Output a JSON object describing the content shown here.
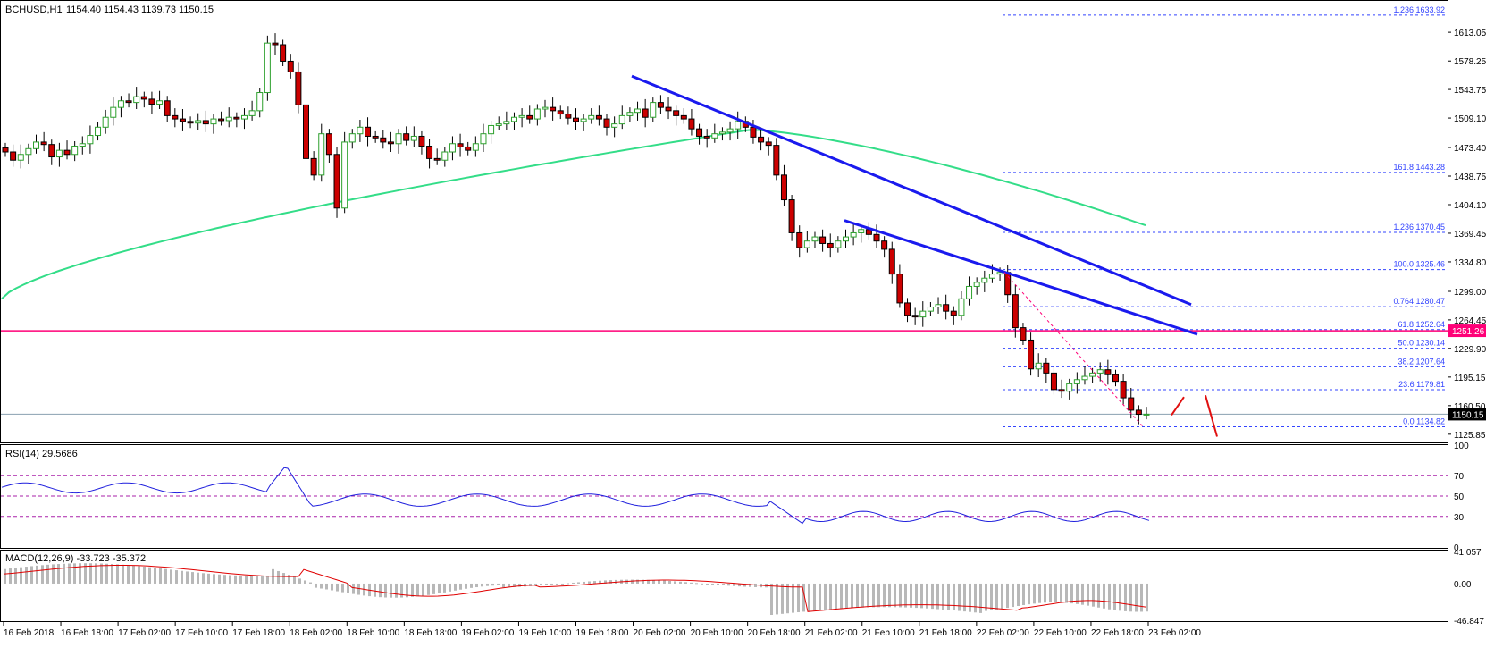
{
  "main": {
    "symbol_label": "BCHUSD,H1",
    "ohlc": "1154.40 1154.43 1139.73 1150.15",
    "current_price_label": "1150.15",
    "horizontal_level_label": "1251.26",
    "price_ticks": [
      "1613.05",
      "1578.25",
      "1543.75",
      "1509.10",
      "1473.40",
      "1438.75",
      "1404.10",
      "1369.45",
      "1334.80",
      "1299.00",
      "1264.45",
      "1229.90",
      "1195.15",
      "1160.50",
      "1125.85"
    ],
    "fib_levels": [
      {
        "label": "1.236  1633.92",
        "price": 1633.92
      },
      {
        "label": "161.8  1443.28",
        "price": 1443.28
      },
      {
        "label": "1.236  1370.45",
        "price": 1370.45
      },
      {
        "label": "100.0  1325.46",
        "price": 1325.46
      },
      {
        "label": "0.764  1280.47",
        "price": 1280.47
      },
      {
        "label": "61.8  1252.64",
        "price": 1252.64
      },
      {
        "label": "50.0  1230.14",
        "price": 1230.14
      },
      {
        "label": "38.2  1207.64",
        "price": 1207.64
      },
      {
        "label": "23.6  1179.81",
        "price": 1179.81
      },
      {
        "label": "0.0  1134.82",
        "price": 1134.82
      }
    ]
  },
  "rsi": {
    "label": "RSI(14) 29.5686",
    "ticks": [
      "100",
      "70",
      "50",
      "30",
      "0"
    ]
  },
  "macd": {
    "label": "MACD(12,26,9) -33.723 -35.372",
    "ticks": [
      "41.057",
      "0.00",
      "-46.847"
    ]
  },
  "time_axis": [
    "16 Feb 2018",
    "16 Feb 18:00",
    "17 Feb 02:00",
    "17 Feb 10:00",
    "17 Feb 18:00",
    "18 Feb 02:00",
    "18 Feb 10:00",
    "18 Feb 18:00",
    "19 Feb 02:00",
    "19 Feb 10:00",
    "19 Feb 18:00",
    "20 Feb 02:00",
    "20 Feb 10:00",
    "20 Feb 18:00",
    "21 Feb 02:00",
    "21 Feb 10:00",
    "21 Feb 18:00",
    "22 Feb 02:00",
    "22 Feb 10:00",
    "22 Feb 18:00",
    "23 Feb 02:00"
  ],
  "colors": {
    "bull_candle": "#2ca02c",
    "bear_candle": "#cc0000",
    "moving_average": "#33dd88",
    "trend_line": "#1a1aee",
    "support_line": "#ff0077",
    "fib_line": "#3344ff",
    "rsi_line": "#1f1fdd",
    "macd_signal": "#e00000",
    "macd_histogram": "#b8b8b8",
    "level_line": "#aa22aa"
  },
  "chart_data": [
    {
      "type": "candlestick",
      "title": "BCHUSD,H1",
      "ylim": [
        1117,
        1650
      ],
      "close_series": [
        1468,
        1458,
        1465,
        1472,
        1480,
        1477,
        1462,
        1470,
        1465,
        1475,
        1478,
        1488,
        1498,
        1510,
        1522,
        1530,
        1528,
        1535,
        1532,
        1526,
        1530,
        1512,
        1508,
        1505,
        1503,
        1506,
        1502,
        1508,
        1506,
        1510,
        1508,
        1512,
        1518,
        1540,
        1600,
        1598,
        1578,
        1565,
        1525,
        1460,
        1440,
        1490,
        1465,
        1400,
        1480,
        1490,
        1498,
        1487,
        1485,
        1480,
        1478,
        1490,
        1482,
        1487,
        1475,
        1460,
        1458,
        1468,
        1478,
        1474,
        1470,
        1478,
        1490,
        1500,
        1502,
        1505,
        1510,
        1512,
        1508,
        1520,
        1522,
        1518,
        1514,
        1509,
        1505,
        1508,
        1512,
        1508,
        1498,
        1502,
        1512,
        1516,
        1520,
        1510,
        1528,
        1522,
        1518,
        1512,
        1508,
        1496,
        1487,
        1485,
        1490,
        1492,
        1496,
        1505,
        1498,
        1486,
        1480,
        1476,
        1440,
        1410,
        1370,
        1352,
        1360,
        1365,
        1357,
        1352,
        1360,
        1365,
        1370,
        1374,
        1368,
        1360,
        1350,
        1320,
        1285,
        1270,
        1268,
        1275,
        1280,
        1283,
        1275,
        1270,
        1290,
        1305,
        1310,
        1315,
        1320,
        1322,
        1295,
        1255,
        1240,
        1205,
        1212,
        1200,
        1180,
        1178,
        1187,
        1192,
        1196,
        1200,
        1204,
        1198,
        1190,
        1170,
        1155,
        1150,
        1150.15
      ],
      "moving_average_range": [
        1290,
        1495
      ],
      "horizontal_support": 1251.26,
      "fib_levels": [
        1633.92,
        1443.28,
        1370.45,
        1325.46,
        1280.47,
        1252.64,
        1230.14,
        1207.64,
        1179.81,
        1134.82
      ]
    },
    {
      "type": "line",
      "title": "RSI(14) 29.5686",
      "ylim": [
        0,
        100
      ],
      "levels": [
        70,
        50,
        30
      ],
      "last_value": 29.5686
    },
    {
      "type": "line",
      "title": "MACD(12,26,9) -33.723 -35.372",
      "ylim": [
        -46.847,
        41.057
      ],
      "macd_last": -33.723,
      "signal_last": -35.372
    }
  ]
}
